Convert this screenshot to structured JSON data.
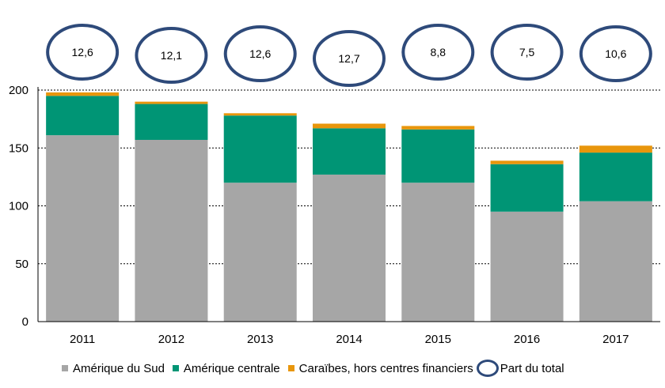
{
  "chart_data": {
    "type": "bar",
    "stacked": true,
    "categories": [
      "2011",
      "2012",
      "2013",
      "2014",
      "2015",
      "2016",
      "2017"
    ],
    "series": [
      {
        "name": "Amérique du Sud",
        "color": "#A6A6A6",
        "values": [
          161,
          157,
          120,
          127,
          120,
          95,
          104
        ]
      },
      {
        "name": "Amérique centrale",
        "color": "#009575",
        "values": [
          34,
          31,
          58,
          40,
          46,
          41,
          42
        ]
      },
      {
        "name": "Caraïbes, hors centres financiers",
        "color": "#E8960C",
        "values": [
          3,
          2,
          2,
          4,
          3,
          3,
          6
        ]
      }
    ],
    "share_label": "Part du total",
    "share_values": [
      "12,6",
      "12,1",
      "12,6",
      "12,7",
      "8,8",
      "7,5",
      "10,6"
    ],
    "ylim": [
      0,
      200
    ],
    "yticks": [
      "0",
      "50",
      "100",
      "150",
      "200"
    ],
    "grid": true,
    "title": "",
    "xlabel": "",
    "ylabel": "",
    "legend_position": "bottom",
    "circle_color": "#2E4A7A"
  }
}
